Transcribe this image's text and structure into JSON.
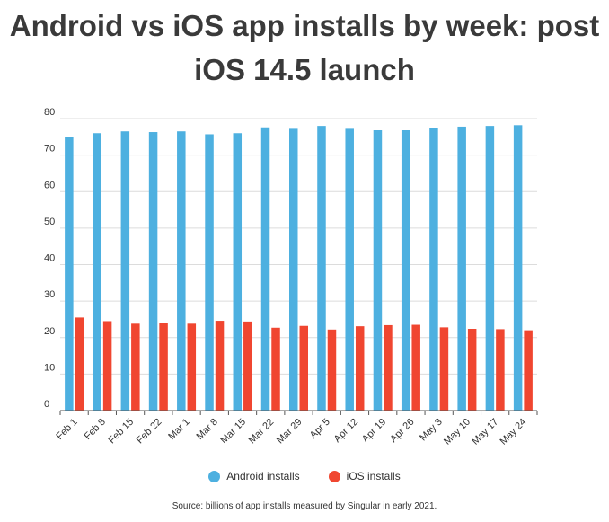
{
  "chart_data": {
    "type": "bar",
    "title": "Android vs iOS app installs by week: post iOS 14.5 launch",
    "categories": [
      "Feb 1",
      "Feb 8",
      "Feb 15",
      "Feb 22",
      "Mar 1",
      "Mar 8",
      "Mar 15",
      "Mar 22",
      "Mar 29",
      "Apr 5",
      "Apr 12",
      "Apr 19",
      "Apr 26",
      "May 3",
      "May 10",
      "May 17",
      "May 24"
    ],
    "series": [
      {
        "name": "Android installs",
        "color": "#4db0e0",
        "values": [
          75,
          76,
          76.5,
          76.3,
          76.5,
          75.7,
          76,
          77.6,
          77.2,
          78,
          77.2,
          76.8,
          76.8,
          77.5,
          77.8,
          78,
          78.2
        ]
      },
      {
        "name": "iOS installs",
        "color": "#f04630",
        "values": [
          25.5,
          24.5,
          23.8,
          24,
          23.8,
          24.6,
          24.4,
          22.7,
          23.2,
          22.2,
          23.1,
          23.4,
          23.5,
          22.8,
          22.4,
          22.3,
          22
        ]
      }
    ],
    "yticks": [
      0,
      10,
      20,
      30,
      40,
      50,
      60,
      70,
      80
    ],
    "ylim": [
      0,
      80
    ],
    "grid": true,
    "legend": "bottom-center",
    "source": "Source: billions of app installs measured by Singular in early 2021."
  }
}
